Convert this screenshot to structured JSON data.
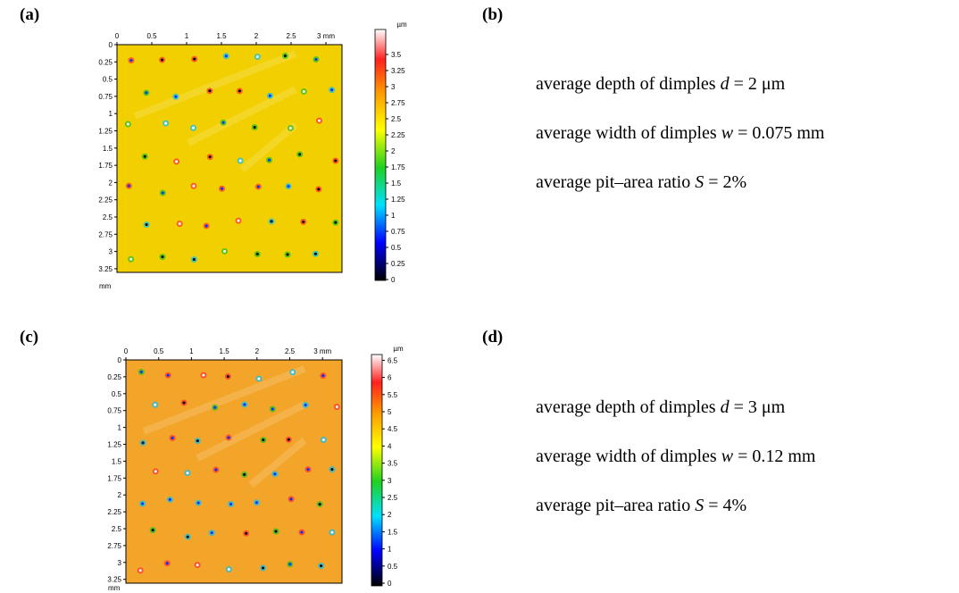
{
  "panels": [
    {
      "label": "(a)",
      "x_ticks": [
        "0",
        "0.5",
        "1",
        "1.5",
        "2",
        "2.5",
        "3 mm"
      ],
      "y_ticks": [
        "0",
        "0.25",
        "0.5",
        "0.75",
        "1",
        "1.25",
        "1.5",
        "1.75",
        "2",
        "2.25",
        "2.5",
        "2.75",
        "3",
        "3.25"
      ],
      "y_unit": "mm",
      "colorbar_unit": "µm",
      "colorbar_ticks": [
        "0",
        "0.25",
        "0.5",
        "0.75",
        "1",
        "1.25",
        "1.5",
        "1.75",
        "2",
        "2.25",
        "2.5",
        "2.75",
        "3",
        "3.25",
        "3.5"
      ]
    },
    {
      "label": "(b)",
      "lines": [
        {
          "prefix": "average depth of dimples ",
          "symbol": "d",
          "suffix": " = 2 μm"
        },
        {
          "prefix": "average width of dimples ",
          "symbol": "w",
          "suffix": " = 0.075 mm"
        },
        {
          "prefix": "average pit–area ratio ",
          "symbol": "S",
          "suffix": " = 2%"
        }
      ]
    },
    {
      "label": "(c)",
      "x_ticks": [
        "0",
        "0.5",
        "1",
        "1.5",
        "2",
        "2.5",
        "3 mm"
      ],
      "y_ticks": [
        "0",
        "0.25",
        "0.5",
        "0.75",
        "1",
        "1.25",
        "1.5",
        "1.75",
        "2",
        "2.25",
        "2.5",
        "2.75",
        "3",
        "3.25"
      ],
      "y_unit": "mm",
      "colorbar_unit": "µm",
      "colorbar_ticks": [
        "0",
        "0.5",
        "1",
        "1.5",
        "2",
        "2.5",
        "3",
        "3.5",
        "4",
        "4.5",
        "5",
        "5.5",
        "6",
        "6.5"
      ]
    },
    {
      "label": "(d)",
      "lines": [
        {
          "prefix": "average depth of dimples ",
          "symbol": "d",
          "suffix": " = 3 μm"
        },
        {
          "prefix": "average width of dimples ",
          "symbol": "w",
          "suffix": " = 0.12 mm"
        },
        {
          "prefix": "average pit–area ratio ",
          "symbol": "S",
          "suffix": " = 4%"
        }
      ]
    }
  ]
}
